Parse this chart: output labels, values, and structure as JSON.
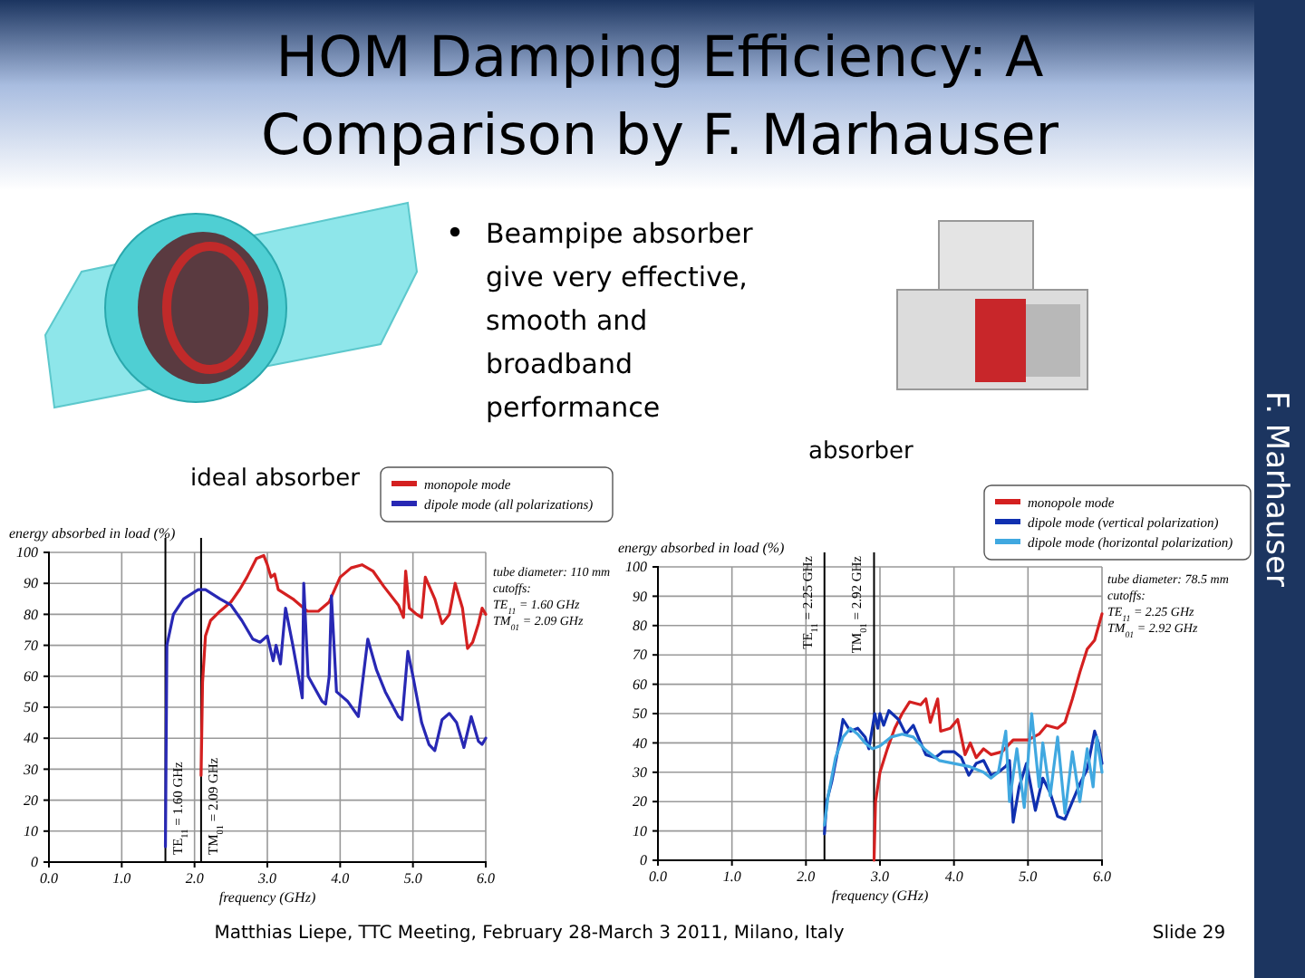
{
  "chart_data": [
    {
      "type": "line",
      "title": "HOM Damping Efficiency: A Comparison by F. Marhauser",
      "subtitle": "ideal absorber",
      "xlabel": "frequency (GHz)",
      "ylabel": "energy absorbed in load (%)",
      "xlim": [
        0,
        6
      ],
      "xticks": [
        {
          "value": 0,
          "label": "0.0"
        },
        {
          "value": 1,
          "label": "1.0"
        },
        {
          "value": 2,
          "label": "2.0"
        },
        {
          "value": 3,
          "label": "3.0"
        },
        {
          "value": 4,
          "label": "4.0"
        },
        {
          "value": 5,
          "label": "5.0"
        },
        {
          "value": 6,
          "label": "6.0"
        }
      ],
      "ylim": [
        0,
        100
      ],
      "yticks": [
        0,
        10,
        20,
        30,
        40,
        50,
        60,
        70,
        80,
        90,
        100
      ],
      "grid": true,
      "legend": "top right",
      "marker": "none",
      "line_style": "solid",
      "ref_lines": [
        {
          "axis": "x",
          "value": 1.6,
          "label": "TE$_{11}$ = 1.60 GHz",
          "color": "#000000"
        },
        {
          "axis": "x",
          "value": 2.09,
          "label": "TM$_{01}$ = 2.09 GHz",
          "color": "#000000"
        }
      ],
      "annotations": [
        "Beampipe absorber give very effective, smooth and broadband performance",
        "tube diameter: 110 mm",
        "cutoffs:",
        "TE$_{11}$ = 1.60 GHz",
        "TM$_{01}$ = 2.09 GHz",
        "F. Marhauser",
        "Matthias Liepe, TTC Meeting, February 28-March 3 2011, Milano, Italy",
        "Slide 29"
      ],
      "series": [
        {
          "name": "monopole mode",
          "color": "#d42020",
          "x": [
            2.09,
            2.11,
            2.15,
            2.22,
            2.35,
            2.5,
            2.62,
            2.72,
            2.85,
            2.95,
            3.0,
            3.05,
            3.1,
            3.15,
            3.35,
            3.55,
            3.7,
            3.85,
            4.0,
            4.15,
            4.3,
            4.45,
            4.6,
            4.8,
            4.87,
            4.9,
            4.95,
            5.05,
            5.12,
            5.17,
            5.3,
            5.4,
            5.5,
            5.58,
            5.68,
            5.75,
            5.82,
            5.9,
            5.95,
            6.0
          ],
          "values": [
            28,
            58,
            73,
            78,
            81,
            84,
            88,
            92,
            98,
            99,
            96,
            92,
            93,
            88,
            85,
            81,
            81,
            84,
            92,
            95,
            96,
            94,
            89,
            83,
            79,
            94,
            82,
            80,
            79,
            92,
            85,
            77,
            80,
            90,
            82,
            69,
            71,
            77,
            82,
            80
          ]
        },
        {
          "name": "dipole mode (all polarizations)",
          "color": "#2828b4",
          "x": [
            1.6,
            1.62,
            1.71,
            1.85,
            2.05,
            2.15,
            2.35,
            2.5,
            2.65,
            2.8,
            2.9,
            3.0,
            3.08,
            3.12,
            3.18,
            3.25,
            3.35,
            3.45,
            3.48,
            3.5,
            3.56,
            3.75,
            3.8,
            3.85,
            3.88,
            3.95,
            4.1,
            4.25,
            4.38,
            4.5,
            4.62,
            4.8,
            4.85,
            4.93,
            5.0,
            5.12,
            5.22,
            5.3,
            5.4,
            5.5,
            5.6,
            5.7,
            5.8,
            5.9,
            5.95,
            6.0
          ],
          "values": [
            5,
            70,
            80,
            85,
            88,
            88,
            85,
            83,
            78,
            72,
            71,
            73,
            65,
            70,
            64,
            82,
            70,
            57,
            53,
            90,
            60,
            52,
            51,
            60,
            86,
            55,
            52,
            47,
            72,
            62,
            55,
            47,
            46,
            68,
            60,
            45,
            38,
            36,
            46,
            48,
            45,
            37,
            47,
            39,
            38,
            40
          ]
        }
      ]
    },
    {
      "type": "line",
      "subtitle": "absorber",
      "xlabel": "frequency (GHz)",
      "ylabel": "energy absorbed in load (%)",
      "xlim": [
        0,
        6
      ],
      "xticks": [
        {
          "value": 0,
          "label": "0.0"
        },
        {
          "value": 1,
          "label": "1.0"
        },
        {
          "value": 2,
          "label": "2.0"
        },
        {
          "value": 3,
          "label": "3.0"
        },
        {
          "value": 4,
          "label": "4.0"
        },
        {
          "value": 5,
          "label": "5.0"
        },
        {
          "value": 6,
          "label": "6.0"
        }
      ],
      "ylim": [
        0,
        100
      ],
      "yticks": [
        0,
        10,
        20,
        30,
        40,
        50,
        60,
        70,
        80,
        90,
        100
      ],
      "grid": true,
      "legend": "top right",
      "marker": "none",
      "line_style": "solid",
      "ref_lines": [
        {
          "axis": "x",
          "value": 2.25,
          "label": "TE$_{11}$ = 2.25 GHz",
          "color": "#000000"
        },
        {
          "axis": "x",
          "value": 2.92,
          "label": "TM$_{01}$ = 2.92 GHz",
          "color": "#000000"
        }
      ],
      "annotations": [
        "tube diameter: 78.5 mm",
        "cutoffs:",
        "TE$_{11}$ = 2.25 GHz",
        "TM$_{01}$ = 2.92 GHz"
      ],
      "series": [
        {
          "name": "monopole mode",
          "color": "#d42020",
          "x": [
            2.92,
            2.94,
            3.0,
            3.1,
            3.2,
            3.3,
            3.4,
            3.55,
            3.62,
            3.68,
            3.78,
            3.82,
            3.95,
            4.05,
            4.15,
            4.22,
            4.3,
            4.4,
            4.5,
            4.65,
            4.8,
            5.0,
            5.15,
            5.25,
            5.4,
            5.5,
            5.6,
            5.7,
            5.8,
            5.9,
            6.0
          ],
          "values": [
            0,
            20,
            30,
            38,
            45,
            50,
            54,
            53,
            55,
            47,
            55,
            44,
            45,
            48,
            36,
            40,
            35,
            38,
            36,
            37,
            41,
            41,
            43,
            46,
            45,
            47,
            55,
            64,
            72,
            75,
            84
          ]
        },
        {
          "name": "dipole mode (vertical polarization)",
          "color": "#1030b0",
          "x": [
            2.25,
            2.28,
            2.35,
            2.45,
            2.5,
            2.6,
            2.7,
            2.8,
            2.85,
            2.93,
            2.97,
            3.0,
            3.05,
            3.12,
            3.25,
            3.35,
            3.45,
            3.55,
            3.62,
            3.75,
            3.85,
            4.0,
            4.1,
            4.2,
            4.3,
            4.4,
            4.5,
            4.6,
            4.7,
            4.75,
            4.8,
            4.88,
            4.98,
            5.1,
            5.2,
            5.3,
            5.4,
            5.5,
            5.6,
            5.7,
            5.8,
            5.9,
            5.95,
            6.0
          ],
          "values": [
            9,
            20,
            27,
            40,
            48,
            44,
            45,
            42,
            38,
            50,
            45,
            50,
            46,
            51,
            48,
            43,
            46,
            40,
            36,
            35,
            37,
            37,
            35,
            29,
            33,
            34,
            29,
            30,
            32,
            34,
            13,
            25,
            33,
            17,
            28,
            23,
            15,
            14,
            20,
            26,
            31,
            44,
            40,
            33
          ]
        },
        {
          "name": "dipole mode (horizontal polarization)",
          "color": "#40a8e0",
          "x": [
            2.25,
            2.3,
            2.4,
            2.5,
            2.6,
            2.7,
            2.8,
            2.9,
            3.0,
            3.15,
            3.3,
            3.45,
            3.6,
            3.8,
            4.0,
            4.2,
            4.4,
            4.5,
            4.6,
            4.7,
            4.75,
            4.85,
            4.95,
            5.05,
            5.15,
            5.2,
            5.3,
            5.4,
            5.5,
            5.6,
            5.7,
            5.8,
            5.88,
            5.93,
            6.0
          ],
          "values": [
            12,
            22,
            35,
            42,
            45,
            43,
            40,
            38,
            39,
            42,
            43,
            42,
            38,
            34,
            33,
            32,
            30,
            28,
            30,
            44,
            20,
            38,
            18,
            50,
            25,
            40,
            22,
            42,
            16,
            37,
            20,
            38,
            25,
            42,
            30
          ]
        }
      ]
    }
  ]
}
